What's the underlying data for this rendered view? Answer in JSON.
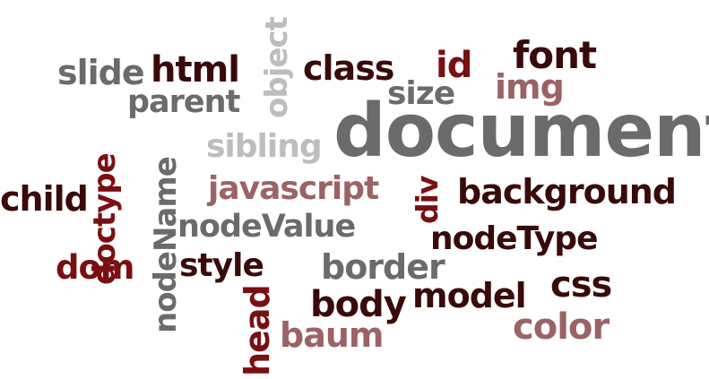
{
  "words": {
    "document": "document",
    "javascript": "javascript",
    "background": "background",
    "nodeType": "nodeType",
    "nodeValue": "nodeValue",
    "nodeName": "nodeName",
    "doctype": "doctype",
    "object": "object",
    "sibling": "sibling",
    "parent": "parent",
    "slide": "slide",
    "html": "html",
    "class": "class",
    "id": "id",
    "font": "font",
    "size": "size",
    "img": "img",
    "child": "child",
    "div": "div",
    "dom": "dom",
    "style": "style",
    "border": "border",
    "body": "body",
    "model": "model",
    "css": "css",
    "head": "head",
    "baum": "baum",
    "color": "color"
  },
  "colors": {
    "dark_red": "#3a0a0a",
    "red": "#7a0f12",
    "rose": "#9b6366",
    "dark_gray": "#6b6b6b",
    "light_gray": "#bdbdbd"
  }
}
